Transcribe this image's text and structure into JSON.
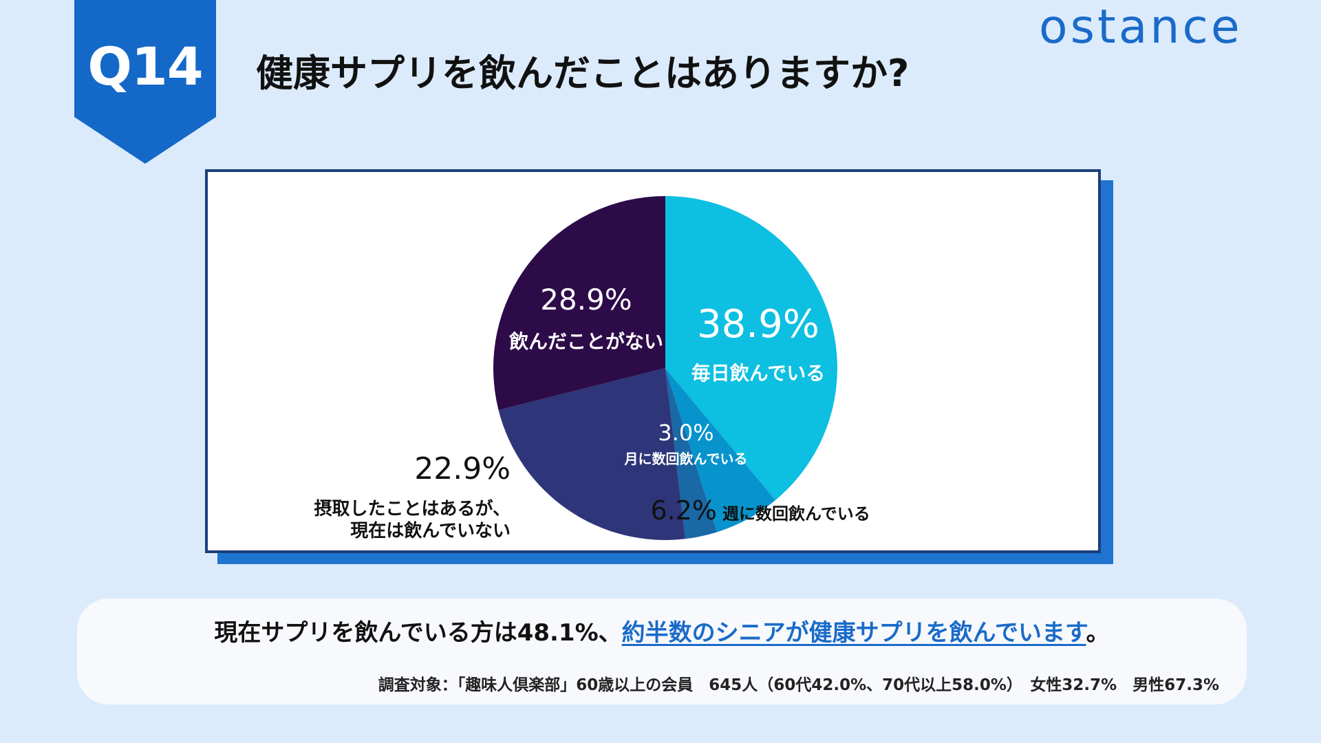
{
  "header": {
    "badge": "Q14",
    "title": "健康サプリを飲んだことはありますか?",
    "logo": "ostance"
  },
  "chart_data": {
    "type": "pie",
    "slices": [
      {
        "label": "毎日飲んでいる",
        "value": 38.9,
        "value_label": "38.9%",
        "color": "#0dbfe1"
      },
      {
        "label": "週に数回飲んでいる",
        "value": 6.2,
        "value_label": "6.2%",
        "color": "#0794cc"
      },
      {
        "label": "月に数回飲んでいる",
        "value": 3.0,
        "value_label": "3.0%",
        "color": "#1a69a7"
      },
      {
        "label": "摂取したことはあるが、現在は飲んでいない",
        "label_lines": [
          "摂取したことはあるが、",
          "現在は飲んでいない"
        ],
        "value": 22.9,
        "value_label": "22.9%",
        "color": "#2e3679"
      },
      {
        "label": "飲んだことがない",
        "value": 28.9,
        "value_label": "28.9%",
        "color": "#2d0b48"
      }
    ],
    "start": "top, clockwise",
    "legend": "none"
  },
  "summary": {
    "prefix": "現在サプリを飲んでいる方は48.1%、",
    "highlight": "約半数のシニアが健康サプリを飲んでいます",
    "suffix": "。"
  },
  "survey_note": "調査対象：「趣味人倶楽部」60歳以上の会員　645人（60代42.0%、70代以上58.0%）　女性32.7%　男性67.3%",
  "colors": {
    "background": "#dcebfc",
    "accent": "#1468c8",
    "frame": "#1b3f78"
  }
}
